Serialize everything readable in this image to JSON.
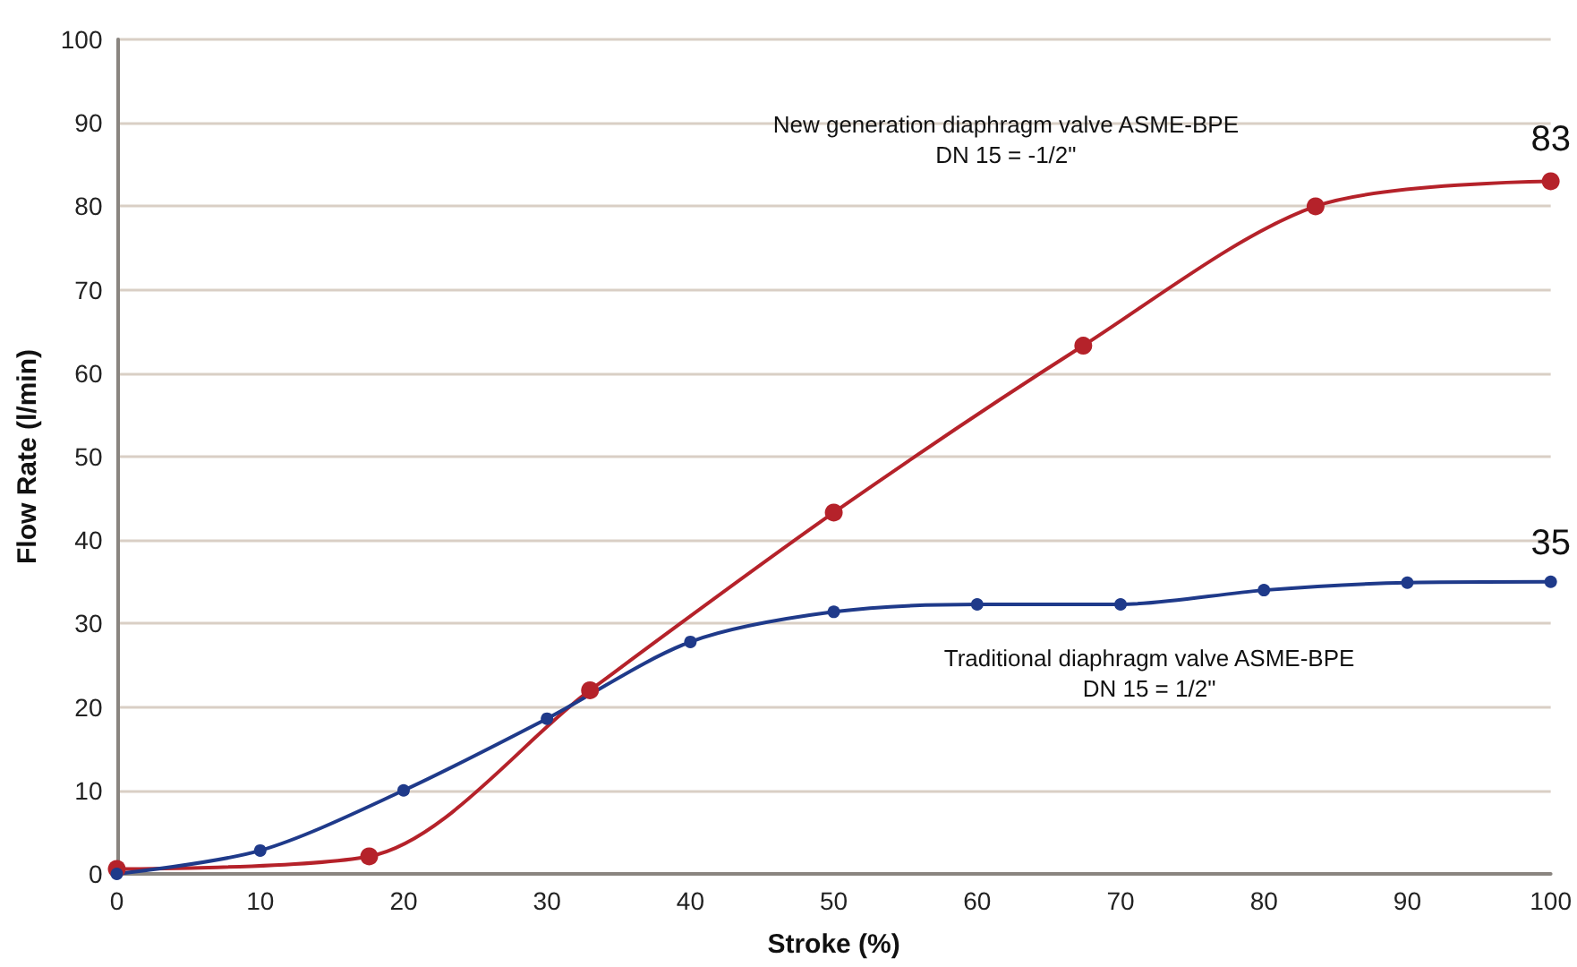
{
  "chart_data": {
    "type": "line",
    "xlabel": "Stroke (%)",
    "ylabel": "Flow Rate (l/min)",
    "xlim": [
      0,
      100
    ],
    "xticks": [
      0,
      10,
      20,
      30,
      40,
      50,
      60,
      70,
      80,
      90,
      100
    ],
    "ylim": [
      0,
      100
    ],
    "yticks": [
      0,
      10,
      20,
      30,
      40,
      50,
      60,
      70,
      80,
      90,
      100
    ],
    "grid": "y",
    "legend": false,
    "marker": "circle",
    "line_style": "solid",
    "series": [
      {
        "name": "New generation diaphragm valve ASME-BPE\nDN 15 = -1/2\"",
        "color": "#b5222a",
        "x": [
          0,
          17.6,
          33,
          50,
          67.4,
          83.6,
          100
        ],
        "values": [
          0.6,
          2.1,
          22,
          43.3,
          63.3,
          80,
          83
        ],
        "value_labels": [
          null,
          null,
          null,
          null,
          null,
          null,
          "83"
        ]
      },
      {
        "name": "Traditional diaphragm valve ASME-BPE\nDN 15 = 1/2\"",
        "color": "#1f3a8a",
        "x": [
          0,
          10,
          20,
          30,
          40,
          50,
          60,
          70,
          80,
          90,
          100
        ],
        "values": [
          0,
          2.8,
          10,
          18.6,
          27.8,
          31.4,
          32.3,
          32.3,
          34,
          34.9,
          35
        ],
        "value_labels": [
          null,
          null,
          null,
          null,
          null,
          null,
          null,
          null,
          null,
          null,
          "35"
        ]
      }
    ]
  }
}
